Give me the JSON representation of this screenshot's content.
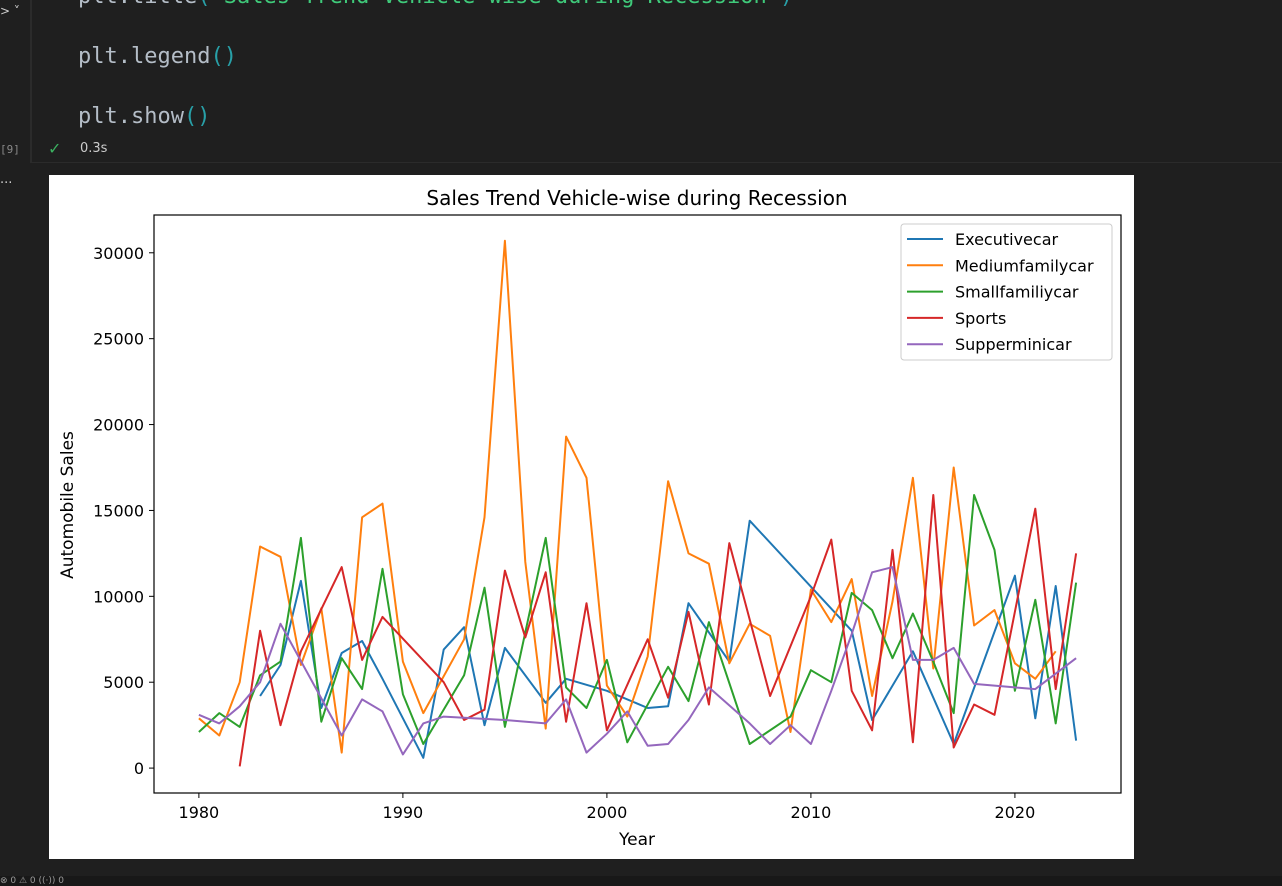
{
  "editor": {
    "code_lines": [
      {
        "prefix": "plt.title",
        "open": "(",
        "string": "'Sales Trend Vehicle-wise during Recession'",
        "close": ")"
      },
      {
        "prefix": "plt.legend",
        "open": "(",
        "string": "",
        "close": ")"
      },
      {
        "prefix": "plt.show",
        "open": "(",
        "string": "",
        "close": ")"
      }
    ],
    "exec_count": "[9]",
    "exec_time": "0.3s",
    "check_icon": "check-icon",
    "output_more": "..."
  },
  "chart_data": {
    "type": "line",
    "title": "Sales Trend Vehicle-wise during Recession",
    "xlabel": "Year",
    "ylabel": "Automobile Sales",
    "xlim": [
      1977.8,
      1025.2
    ],
    "ylim": [
      -1450,
      32200
    ],
    "xticks": [
      1980,
      1990,
      2000,
      2010,
      2020
    ],
    "yticks": [
      0,
      5000,
      10000,
      15000,
      20000,
      25000,
      30000
    ],
    "legend_position": "top-right",
    "grid": false,
    "series": [
      {
        "name": "Executivecar",
        "color": "#1f77b4",
        "points": [
          [
            1983,
            4200
          ],
          [
            1984,
            6000
          ],
          [
            1985,
            10900
          ],
          [
            1986,
            3500
          ],
          [
            1987,
            6700
          ],
          [
            1988,
            7400
          ],
          [
            1989,
            5200
          ],
          [
            1991,
            600
          ],
          [
            1992,
            6900
          ],
          [
            1993,
            8200
          ],
          [
            1994,
            2500
          ],
          [
            1995,
            7000
          ],
          [
            1997,
            3800
          ],
          [
            1998,
            5200
          ],
          [
            2000,
            4500
          ],
          [
            2002,
            3500
          ],
          [
            2003,
            3600
          ],
          [
            2004,
            9600
          ],
          [
            2006,
            6200
          ],
          [
            2007,
            14400
          ],
          [
            2012,
            8000
          ],
          [
            2013,
            2800
          ],
          [
            2015,
            6800
          ],
          [
            2017,
            1400
          ],
          [
            2020,
            11200
          ],
          [
            2021,
            2900
          ],
          [
            2022,
            10600
          ],
          [
            2023,
            1600
          ]
        ]
      },
      {
        "name": "Mediumfamilycar",
        "color": "#ff7f0e",
        "points": [
          [
            1980,
            2900
          ],
          [
            1981,
            1900
          ],
          [
            1982,
            5000
          ],
          [
            1983,
            12900
          ],
          [
            1984,
            12300
          ],
          [
            1985,
            6000
          ],
          [
            1986,
            9300
          ],
          [
            1987,
            900
          ],
          [
            1988,
            14600
          ],
          [
            1989,
            15400
          ],
          [
            1990,
            6200
          ],
          [
            1991,
            3200
          ],
          [
            1993,
            7500
          ],
          [
            1994,
            14600
          ],
          [
            1995,
            30700
          ],
          [
            1996,
            12000
          ],
          [
            1997,
            2300
          ],
          [
            1998,
            19300
          ],
          [
            1999,
            16900
          ],
          [
            2000,
            4800
          ],
          [
            2001,
            3000
          ],
          [
            2002,
            6500
          ],
          [
            2003,
            16700
          ],
          [
            2004,
            12500
          ],
          [
            2005,
            11900
          ],
          [
            2006,
            6100
          ],
          [
            2007,
            8400
          ],
          [
            2008,
            7700
          ],
          [
            2009,
            2100
          ],
          [
            2010,
            10400
          ],
          [
            2011,
            8500
          ],
          [
            2012,
            11000
          ],
          [
            2013,
            4200
          ],
          [
            2014,
            9700
          ],
          [
            2015,
            16900
          ],
          [
            2016,
            5800
          ],
          [
            2017,
            17500
          ],
          [
            2018,
            8300
          ],
          [
            2019,
            9200
          ],
          [
            2020,
            6100
          ],
          [
            2021,
            5200
          ],
          [
            2022,
            6800
          ]
        ]
      },
      {
        "name": "Smallfamiliycar",
        "color": "#2ca02c",
        "points": [
          [
            1980,
            2100
          ],
          [
            1981,
            3200
          ],
          [
            1982,
            2400
          ],
          [
            1983,
            5400
          ],
          [
            1984,
            6200
          ],
          [
            1985,
            13400
          ],
          [
            1986,
            2700
          ],
          [
            1987,
            6400
          ],
          [
            1988,
            4600
          ],
          [
            1989,
            11600
          ],
          [
            1990,
            4300
          ],
          [
            1991,
            1400
          ],
          [
            1993,
            5400
          ],
          [
            1994,
            10500
          ],
          [
            1995,
            2400
          ],
          [
            1997,
            13400
          ],
          [
            1998,
            4700
          ],
          [
            1999,
            3500
          ],
          [
            2000,
            6300
          ],
          [
            2001,
            1500
          ],
          [
            2003,
            5900
          ],
          [
            2004,
            3900
          ],
          [
            2005,
            8500
          ],
          [
            2007,
            1400
          ],
          [
            2009,
            3000
          ],
          [
            2010,
            5700
          ],
          [
            2011,
            5000
          ],
          [
            2012,
            10200
          ],
          [
            2013,
            9200
          ],
          [
            2014,
            6400
          ],
          [
            2015,
            9000
          ],
          [
            2016,
            6200
          ],
          [
            2017,
            3200
          ],
          [
            2018,
            15900
          ],
          [
            2019,
            12700
          ],
          [
            2020,
            4500
          ],
          [
            2021,
            9800
          ],
          [
            2022,
            2600
          ],
          [
            2023,
            10800
          ]
        ]
      },
      {
        "name": "Sports",
        "color": "#d62728",
        "points": [
          [
            1982,
            100
          ],
          [
            1983,
            8000
          ],
          [
            1984,
            2500
          ],
          [
            1985,
            6800
          ],
          [
            1987,
            11700
          ],
          [
            1988,
            6300
          ],
          [
            1989,
            8800
          ],
          [
            1992,
            5000
          ],
          [
            1993,
            2800
          ],
          [
            1994,
            3400
          ],
          [
            1995,
            11500
          ],
          [
            1996,
            7600
          ],
          [
            1997,
            11400
          ],
          [
            1998,
            2700
          ],
          [
            1999,
            9600
          ],
          [
            2000,
            2200
          ],
          [
            2002,
            7500
          ],
          [
            2003,
            4100
          ],
          [
            2004,
            9100
          ],
          [
            2005,
            3700
          ],
          [
            2006,
            13100
          ],
          [
            2008,
            4200
          ],
          [
            2010,
            10000
          ],
          [
            2011,
            13300
          ],
          [
            2012,
            4500
          ],
          [
            2013,
            2200
          ],
          [
            2014,
            12700
          ],
          [
            2015,
            1500
          ],
          [
            2016,
            15900
          ],
          [
            2017,
            1200
          ],
          [
            2018,
            3700
          ],
          [
            2019,
            3100
          ],
          [
            2021,
            15100
          ],
          [
            2022,
            4600
          ],
          [
            2023,
            12500
          ]
        ]
      },
      {
        "name": "Supperminicar",
        "color": "#9467bd",
        "points": [
          [
            1980,
            3100
          ],
          [
            1981,
            2600
          ],
          [
            1982,
            3600
          ],
          [
            1983,
            5000
          ],
          [
            1984,
            8400
          ],
          [
            1987,
            1900
          ],
          [
            1988,
            4000
          ],
          [
            1989,
            3300
          ],
          [
            1990,
            800
          ],
          [
            1991,
            2600
          ],
          [
            1992,
            3000
          ],
          [
            1995,
            2800
          ],
          [
            1997,
            2600
          ],
          [
            1998,
            4000
          ],
          [
            1999,
            900
          ],
          [
            2000,
            2000
          ],
          [
            2001,
            3300
          ],
          [
            2002,
            1300
          ],
          [
            2003,
            1400
          ],
          [
            2004,
            2800
          ],
          [
            2005,
            4700
          ],
          [
            2007,
            2600
          ],
          [
            2008,
            1400
          ],
          [
            2009,
            2500
          ],
          [
            2010,
            1400
          ],
          [
            2011,
            4500
          ],
          [
            2012,
            7800
          ],
          [
            2013,
            11400
          ],
          [
            2014,
            11700
          ],
          [
            2015,
            6300
          ],
          [
            2016,
            6300
          ],
          [
            2017,
            7000
          ],
          [
            2018,
            4900
          ],
          [
            2020,
            4700
          ],
          [
            2021,
            4600
          ],
          [
            2023,
            6400
          ]
        ]
      }
    ]
  },
  "statusbar": {
    "text": "⊗ 0  ⚠ 0    ((·)) 0"
  }
}
